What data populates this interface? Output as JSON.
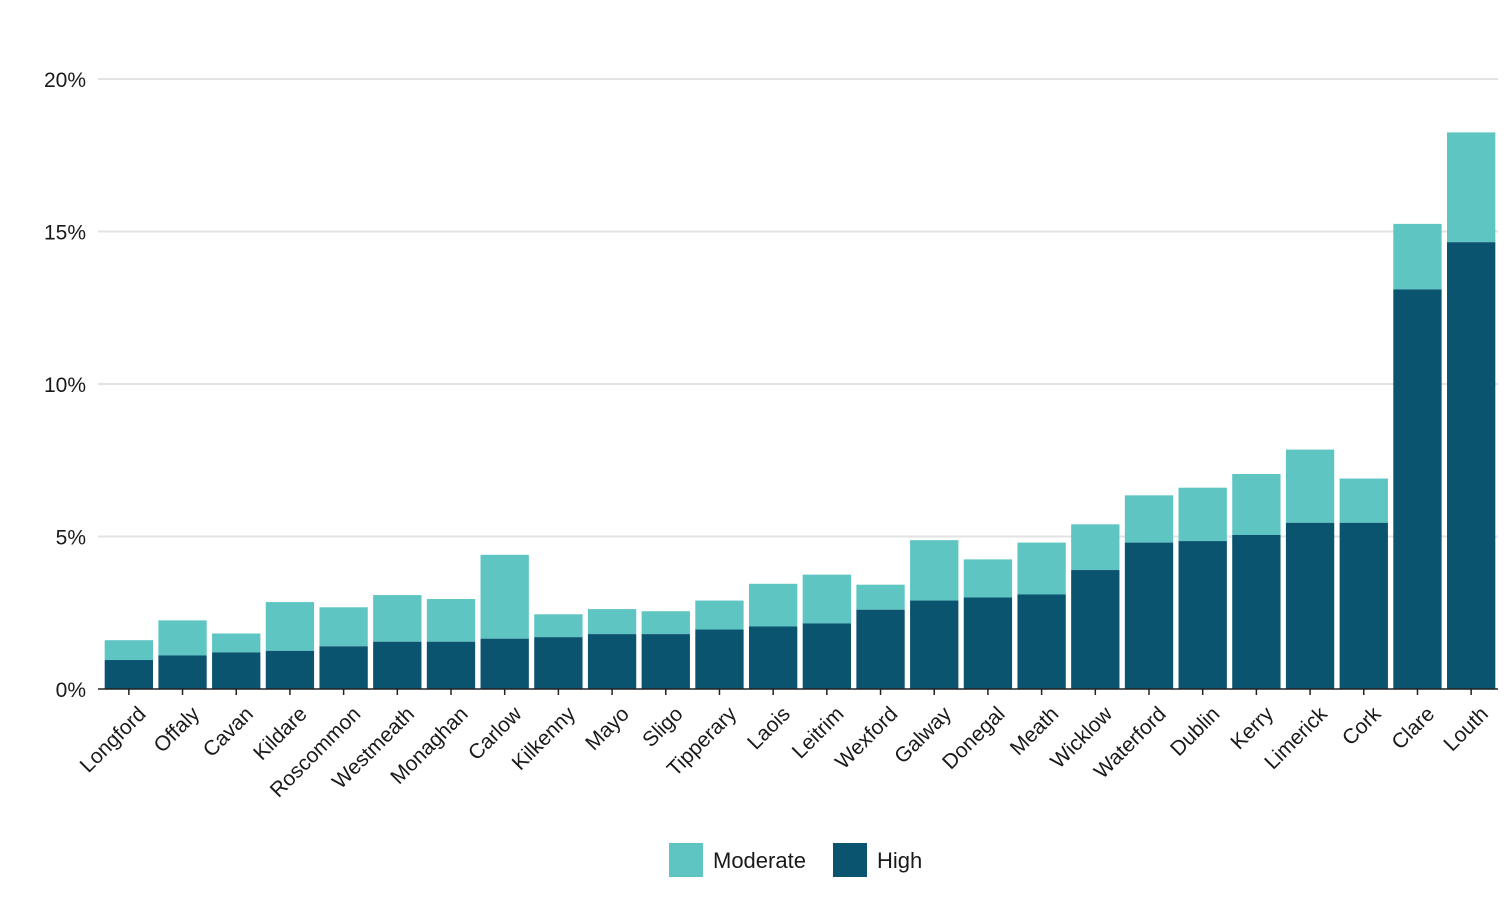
{
  "chart_data": {
    "type": "bar",
    "stacked": true,
    "title": "",
    "xlabel": "",
    "ylabel": "",
    "categories": [
      "Longford",
      "Offaly",
      "Cavan",
      "Kildare",
      "Roscommon",
      "Westmeath",
      "Monaghan",
      "Carlow",
      "Kilkenny",
      "Mayo",
      "Sligo",
      "Tipperary",
      "Laois",
      "Leitrim",
      "Wexford",
      "Galway",
      "Donegal",
      "Meath",
      "Wicklow",
      "Waterford",
      "Dublin",
      "Kerry",
      "Limerick",
      "Cork",
      "Clare",
      "Louth"
    ],
    "series": [
      {
        "name": "High",
        "color": "#0b5470",
        "values": [
          0.95,
          1.1,
          1.2,
          1.25,
          1.4,
          1.55,
          1.55,
          1.65,
          1.7,
          1.8,
          1.8,
          1.95,
          2.05,
          2.15,
          2.6,
          2.9,
          3.0,
          3.1,
          3.9,
          4.8,
          4.85,
          5.05,
          5.45,
          5.45,
          13.1,
          14.65
        ]
      },
      {
        "name": "Moderate",
        "color": "#5fc5c2",
        "values": [
          0.65,
          1.15,
          0.62,
          1.6,
          1.28,
          1.53,
          1.4,
          2.75,
          0.75,
          0.82,
          0.75,
          0.95,
          1.4,
          1.6,
          0.82,
          1.98,
          1.25,
          1.7,
          1.5,
          1.55,
          1.75,
          2.0,
          2.4,
          1.45,
          2.15,
          3.6
        ]
      }
    ],
    "ylim": [
      0,
      20
    ],
    "yticks": [
      0,
      5,
      10,
      15,
      20
    ],
    "ytick_labels": [
      "0%",
      "5%",
      "10%",
      "15%",
      "20%"
    ],
    "grid": true,
    "legend": {
      "position": "bottom-center",
      "items": [
        {
          "label": "Moderate",
          "color": "#5fc5c2"
        },
        {
          "label": "High",
          "color": "#0b5470"
        }
      ]
    }
  }
}
